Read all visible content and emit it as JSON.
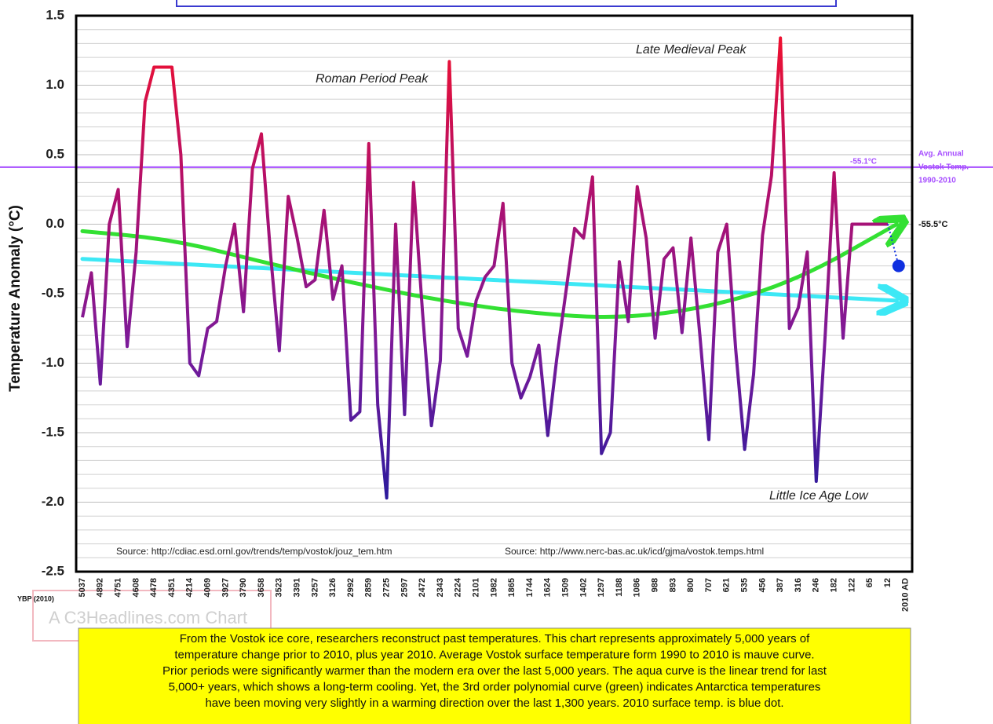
{
  "chart_data": {
    "type": "line",
    "y_label": "Temperature Anomaly (°C)",
    "x_label": "YBP (2010)",
    "categories": [
      "5037",
      null,
      "4892",
      null,
      "4751",
      null,
      "4608",
      null,
      "4478",
      null,
      "4351",
      null,
      "4214",
      null,
      "4069",
      null,
      "3927",
      null,
      "3790",
      null,
      "3658",
      null,
      "3523",
      null,
      "3391",
      null,
      "3257",
      null,
      "3126",
      null,
      "2992",
      null,
      "2859",
      null,
      "2725",
      null,
      "2597",
      null,
      "2472",
      null,
      "2343",
      null,
      "2224",
      null,
      "2101",
      null,
      "1982",
      null,
      "1865",
      null,
      "1744",
      null,
      "1624",
      null,
      "1509",
      null,
      "1402",
      null,
      "1297",
      null,
      "1188",
      null,
      "1086",
      null,
      "988",
      null,
      "893",
      null,
      "800",
      null,
      "707",
      null,
      "621",
      null,
      "535",
      null,
      "456",
      null,
      "387",
      null,
      "316",
      null,
      "246",
      null,
      "182",
      null,
      "122",
      null,
      "65",
      null,
      "12",
      null,
      "2010 AD"
    ],
    "highlight_category_color": "#2233cc",
    "line_gradient": [
      "#ee1030",
      "#b0106e",
      "#7a1a9a",
      "#2a1a9c"
    ],
    "series": [
      {
        "values": [
          -0.67,
          -0.35,
          -1.15,
          0.0,
          0.25,
          -0.88,
          -0.2,
          0.88,
          1.13,
          1.13,
          1.13,
          0.5,
          -1.0,
          -1.09,
          -0.75,
          -0.7,
          -0.3,
          0.0,
          -0.63,
          0.4,
          0.65,
          -0.2,
          -0.91,
          0.2,
          -0.1,
          -0.45,
          -0.4,
          0.1,
          -0.54,
          -0.3,
          -1.41,
          -1.35,
          0.58,
          -1.3,
          -1.97,
          0.0,
          -1.37,
          0.3,
          -0.63,
          -1.45,
          -0.98,
          1.17,
          -0.75,
          -0.95,
          -0.55,
          -0.38,
          -0.3,
          0.15,
          -1.0,
          -1.25,
          -1.1,
          -0.87,
          -1.52,
          -0.97,
          -0.5,
          -0.03,
          -0.1,
          0.34,
          -1.65,
          -1.5,
          -0.27,
          -0.7,
          0.27,
          -0.1,
          -0.82,
          -0.25,
          -0.17,
          -0.78,
          -0.1,
          -0.8,
          -1.55,
          -0.2,
          0.0,
          -0.9,
          -1.62,
          -1.08,
          -0.08,
          0.35,
          1.34,
          -0.75,
          -0.6,
          -0.2,
          -1.85,
          -0.8,
          0.37,
          -0.82,
          0.0,
          0.0,
          0.0,
          0.0,
          0.0,
          null,
          null
        ]
      },
      {
        "color": "#1030e0",
        "values": [
          null,
          null,
          null,
          null,
          null,
          null,
          null,
          null,
          null,
          null,
          null,
          null,
          null,
          null,
          null,
          null,
          null,
          null,
          null,
          null,
          null,
          null,
          null,
          null,
          null,
          null,
          null,
          null,
          null,
          null,
          null,
          null,
          null,
          null,
          null,
          null,
          null,
          null,
          null,
          null,
          null,
          null,
          null,
          null,
          null,
          null,
          null,
          null,
          null,
          null,
          null,
          null,
          null,
          null,
          null,
          null,
          null,
          null,
          null,
          null,
          null,
          null,
          null,
          null,
          null,
          null,
          null,
          null,
          null,
          null,
          null,
          null,
          null,
          null,
          null,
          null,
          null,
          null,
          null,
          null,
          null,
          null,
          null,
          null,
          null,
          null,
          null,
          null,
          null,
          null,
          null,
          null,
          -0.3
        ]
      }
    ],
    "trend_lines": [
      {
        "color": "#3de8f5",
        "x": [
          0,
          91
        ],
        "values": [
          -0.25,
          -0.55
        ]
      },
      {
        "color": "#33e033",
        "x": [
          0,
          10,
          20,
          30,
          40,
          50,
          60,
          70,
          80,
          91
        ],
        "values": [
          -0.05,
          -0.11,
          -0.27,
          -0.42,
          -0.55,
          -0.64,
          -0.68,
          -0.6,
          -0.4,
          0.0
        ]
      }
    ],
    "ref_line": {
      "value": 0.41,
      "color": "#a64dff",
      "label": "-55.1°C",
      "note": [
        "Avg. Annual",
        "Vostok Temp.",
        "1990-2010"
      ]
    },
    "zero_label": "-55.5°C",
    "ylim": [
      -2.5,
      1.5
    ],
    "yticks": [
      1.5,
      {
        "value": 1,
        "label": "1.0"
      },
      0.5,
      {
        "value": 0,
        "label": "0.0"
      },
      -0.5,
      {
        "value": -1,
        "label": "-1.0"
      },
      -1.5,
      {
        "value": -2,
        "label": "-2.0"
      },
      -2.5
    ],
    "grid": true,
    "annotations": [
      "Roman Period Peak",
      "Late Medieval Peak",
      "Little Ice Age Low"
    ],
    "sources": [
      "Source: http://cdiac.esd.ornl.gov/trends/temp/vostok/jouz_tem.htm",
      "Source: http://www.nerc-bas.ac.uk/icd/gjma/vostok.temps.html"
    ],
    "watermark": "A C3Headlines.com Chart",
    "caption": [
      "From the Vostok ice core, researchers reconstruct past temperatures. This chart represents approximately 5,000 years of",
      "temperature change prior to 2010, plus year 2010. Average Vostok surface temperature form 1990 to 2010 is mauve curve.",
      "Prior periods were significantly warmer than the modern era over the last 5,000 years. The aqua curve is the linear trend for last",
      "5,000+ years, which shows a long-term cooling. Yet, the 3rd order polynomial curve (green) indicates Antarctica temperatures",
      "have been moving very slightly in a warming direction over the last 1,300 years. 2010 surface temp. is blue dot."
    ]
  }
}
